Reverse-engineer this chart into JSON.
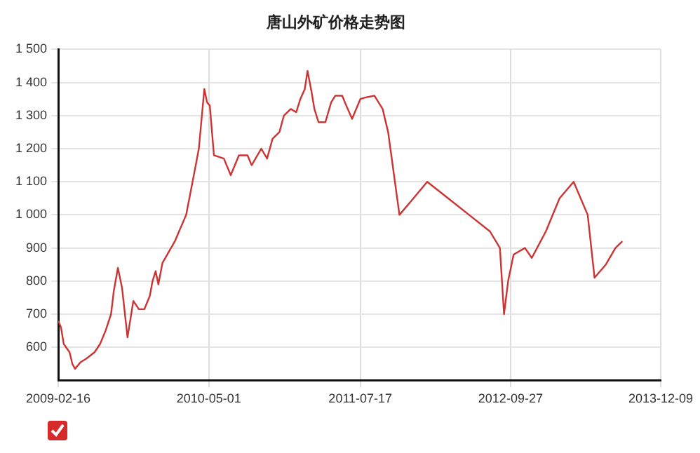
{
  "chart_data": {
    "type": "line",
    "title": "唐山外矿价格走势图",
    "x": [
      "2009-02-16",
      "2009-02-24",
      "2009-03-04",
      "2009-03-21",
      "2009-03-29",
      "2009-04-06",
      "2009-04-22",
      "2009-05-08",
      "2009-06-02",
      "2009-06-18",
      "2009-07-04",
      "2009-07-20",
      "2009-07-28",
      "2009-08-09",
      "2009-08-21",
      "2009-09-06",
      "2009-09-23",
      "2009-10-09",
      "2009-10-25",
      "2009-11-10",
      "2009-11-18",
      "2009-11-27",
      "2009-12-05",
      "2009-12-17",
      "2010-01-22",
      "2010-02-24",
      "2010-03-24",
      "2010-04-02",
      "2010-04-18",
      "2010-04-26",
      "2010-05-04",
      "2010-05-16",
      "2010-06-14",
      "2010-07-04",
      "2010-07-28",
      "2010-08-22",
      "2010-09-03",
      "2010-10-01",
      "2010-10-18",
      "2010-11-03",
      "2010-11-23",
      "2010-12-06",
      "2010-12-26",
      "2011-01-11",
      "2011-01-23",
      "2011-02-05",
      "2011-02-13",
      "2011-02-25",
      "2011-03-05",
      "2011-03-17",
      "2011-04-06",
      "2011-04-23",
      "2011-05-05",
      "2011-05-25",
      "2011-06-06",
      "2011-06-23",
      "2011-07-17",
      "2011-08-02",
      "2011-08-27",
      "2011-09-20",
      "2011-10-06",
      "2011-10-14",
      "2011-11-08",
      "2011-12-19",
      "2012-01-28",
      "2012-03-29",
      "2012-05-29",
      "2012-07-29",
      "2012-08-27",
      "2012-09-08",
      "2012-09-20",
      "2012-10-06",
      "2012-11-08",
      "2012-11-28",
      "2013-01-08",
      "2013-02-17",
      "2013-03-30",
      "2013-05-10",
      "2013-05-30",
      "2013-07-02",
      "2013-07-30",
      "2013-08-19"
    ],
    "series": [
      {
        "color": "#cc3333",
        "values": [
          680,
          660,
          610,
          585,
          550,
          535,
          555,
          565,
          585,
          610,
          650,
          700,
          770,
          840,
          780,
          630,
          740,
          715,
          715,
          755,
          800,
          830,
          790,
          855,
          920,
          1000,
          1150,
          1200,
          1380,
          1340,
          1330,
          1180,
          1170,
          1120,
          1180,
          1180,
          1150,
          1200,
          1170,
          1230,
          1250,
          1300,
          1320,
          1310,
          1350,
          1380,
          1435,
          1370,
          1320,
          1280,
          1280,
          1340,
          1360,
          1360,
          1330,
          1290,
          1350,
          1355,
          1360,
          1320,
          1250,
          1190,
          1000,
          1050,
          1100,
          1050,
          1000,
          950,
          900,
          700,
          800,
          880,
          900,
          870,
          950,
          1050,
          1100,
          1000,
          810,
          850,
          900,
          920
        ]
      }
    ],
    "xlim": [
      "2009-02-16",
      "2013-12-09"
    ],
    "xticks": [
      "2009-02-16",
      "2010-05-01",
      "2011-07-17",
      "2012-09-27",
      "2013-12-09"
    ],
    "ylim": [
      500,
      1500
    ],
    "yticks": [
      600,
      700,
      800,
      900,
      {
        "value": 1000,
        "label": "1 000"
      },
      {
        "value": 1100,
        "label": "1 100"
      },
      {
        "value": 1200,
        "label": "1 200"
      },
      {
        "value": 1300,
        "label": "1 300"
      },
      {
        "value": 1400,
        "label": "1 400"
      },
      {
        "value": 1500,
        "label": "1 500"
      }
    ],
    "grid": true,
    "marker": "none",
    "line_style": "solid"
  }
}
